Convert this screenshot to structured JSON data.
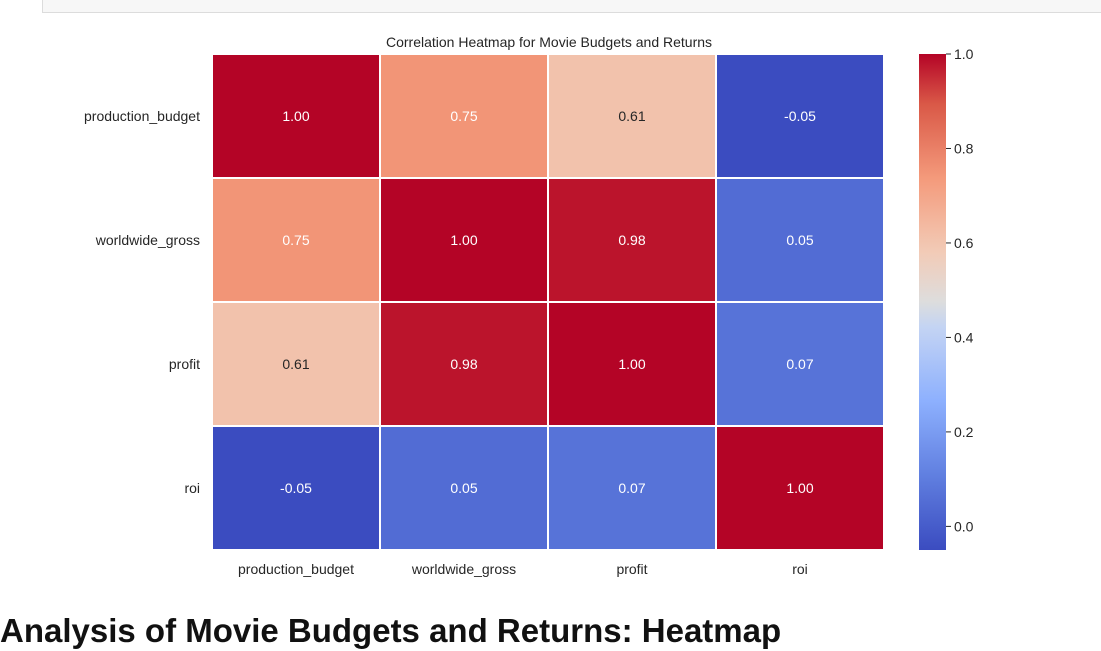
{
  "page": {
    "heading": "Analysis of Movie Budgets and Returns: Heatmap"
  },
  "chart_data": {
    "type": "heatmap",
    "title": "Correlation Heatmap for Movie Budgets and Returns",
    "xlabel": "",
    "ylabel": "",
    "x_categories": [
      "production_budget",
      "worldwide_gross",
      "profit",
      "roi"
    ],
    "y_categories": [
      "production_budget",
      "worldwide_gross",
      "profit",
      "roi"
    ],
    "values": [
      [
        1.0,
        0.75,
        0.61,
        -0.05
      ],
      [
        0.75,
        1.0,
        0.98,
        0.05
      ],
      [
        0.61,
        0.98,
        1.0,
        0.07
      ],
      [
        -0.05,
        0.05,
        0.07,
        1.0
      ]
    ],
    "annotation_format": "0.00",
    "colormap": "coolwarm",
    "colorbar": {
      "range": [
        -0.05,
        1.0
      ],
      "ticks": [
        0.0,
        0.2,
        0.4,
        0.6,
        0.8,
        1.0
      ],
      "tick_labels": [
        "0.0",
        "0.2",
        "0.4",
        "0.6",
        "0.8",
        "1.0"
      ]
    },
    "grid": false,
    "cell_border_color": "#ffffff"
  }
}
